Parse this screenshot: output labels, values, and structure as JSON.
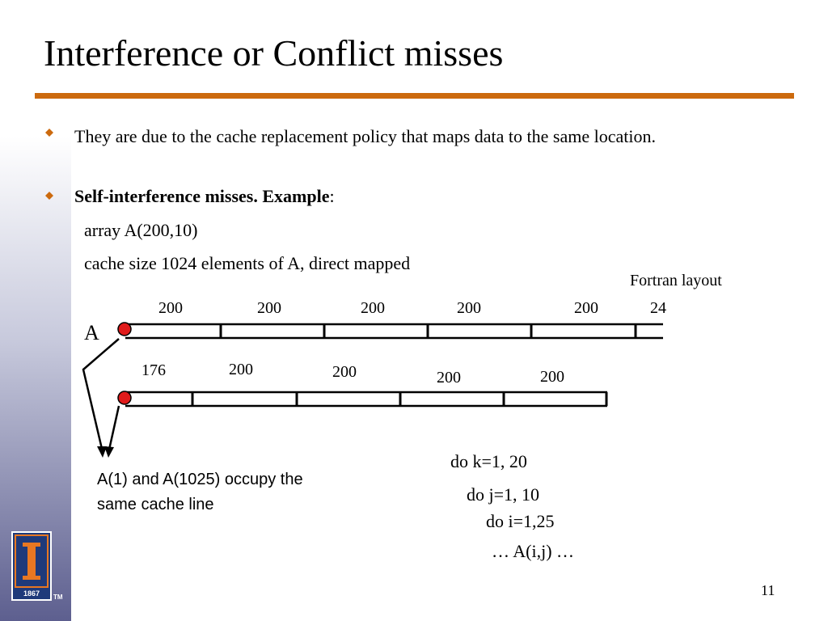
{
  "slide": {
    "title": "Interference or Conflict misses",
    "bullets": [
      "They are due to the cache replacement policy that maps data to the same location.",
      "Self-interference misses. Example"
    ],
    "bullet2_suffix": ":",
    "sub_lines": [
      "array A(200,10)",
      "cache size 1024 elements of  A, direct mapped"
    ],
    "page_number": "11",
    "logo": {
      "text": "1867",
      "tm": "TM"
    },
    "colors": {
      "accent": "#cc6a0e",
      "bullet": "#cc6a0e",
      "marker": "#e01b1b"
    }
  },
  "diagram": {
    "layout_label": "Fortran layout",
    "array_label": "A",
    "row1_labels": [
      "200",
      "200",
      "200",
      "200",
      "200",
      "24"
    ],
    "row2_labels": [
      "176",
      "200",
      "200",
      "200",
      "200"
    ],
    "note": "A(1) and A(1025) occupy the same cache line"
  },
  "code": {
    "lines": [
      "do k=1, 20",
      "do j=1, 10",
      "do i=1,25",
      "… A(i,j) …"
    ]
  }
}
